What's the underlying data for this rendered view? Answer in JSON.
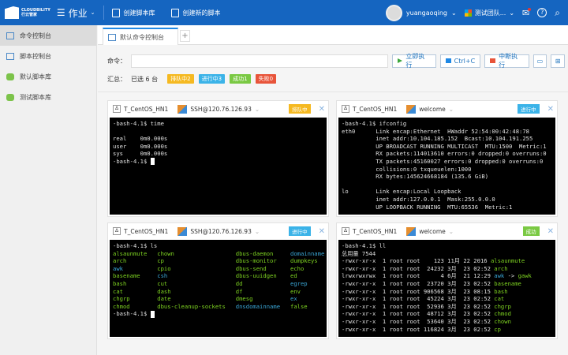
{
  "header": {
    "brand_line1": "CLOUDBILITY",
    "brand_line2": "行云管家",
    "menu": "作业",
    "create_repo": "创建脚本库",
    "create_script": "创建新的脚本",
    "user": "yuangaoqing",
    "team": "测试团队...",
    "help": "?",
    "search": "⌕"
  },
  "sidebar": {
    "items": [
      {
        "label": "命令控制台",
        "icon": "terminal-icon",
        "active": true
      },
      {
        "label": "脚本控制台",
        "icon": "script-console-icon"
      },
      {
        "label": "默认脚本库",
        "icon": "database-icon"
      },
      {
        "label": "测试脚本库",
        "icon": "database-icon"
      }
    ]
  },
  "tabs": [
    {
      "label": "默认命令控制台"
    }
  ],
  "tab_add": "+",
  "command": {
    "label": "命令：",
    "value": "",
    "run": "立即执行",
    "ctrlc": "Ctrl+C",
    "abort": "中断执行"
  },
  "summary": {
    "label": "汇总：",
    "selected": "已选 6 台",
    "badges": [
      {
        "label": "排队中2",
        "color": "#f5b921"
      },
      {
        "label": "进行中3",
        "color": "#3bb3e8"
      },
      {
        "label": "成功1",
        "color": "#7ac943"
      },
      {
        "label": "失败0",
        "color": "#e8543a"
      }
    ]
  },
  "panels": [
    {
      "host": "T_CentOS_HN1",
      "conn": "SSH@120.76.126.93",
      "status": "排队中",
      "status_color": "#f5b921",
      "lines": [
        [
          {
            "t": "-bash-4.1$ time"
          }
        ],
        [
          {
            "t": ""
          }
        ],
        [
          {
            "t": "real    0m0.000s"
          }
        ],
        [
          {
            "t": "user    0m0.000s"
          }
        ],
        [
          {
            "t": "sys     0m0.000s"
          }
        ],
        [
          {
            "t": "-bash-4.1$ "
          }
        ]
      ],
      "cursor": true
    },
    {
      "host": "T_CentOS_HN1",
      "conn": "welcome",
      "status": "进行中",
      "status_color": "#3bb3e8",
      "lines": [
        [
          {
            "t": "-bash-4.1$ ifconfig"
          }
        ],
        [
          {
            "t": "eth0      Link encap:Ethernet  HWaddr 52:54:00:42:48:78"
          }
        ],
        [
          {
            "t": "          inet addr:10.104.185.152  Bcast:10.104.191.255"
          }
        ],
        [
          {
            "t": "          UP BROADCAST RUNNING MULTICAST  MTU:1500  Metric:1"
          }
        ],
        [
          {
            "t": "          RX packets:114013610 errors:0 dropped:0 overruns:0"
          }
        ],
        [
          {
            "t": "          TX packets:45160027 errors:0 dropped:0 overruns:0"
          }
        ],
        [
          {
            "t": "          collisions:0 txqueuelen:1000"
          }
        ],
        [
          {
            "t": "          RX bytes:145624668184 (135.6 GiB)"
          }
        ],
        [
          {
            "t": ""
          }
        ],
        [
          {
            "t": "lo        Link encap:Local Loopback"
          }
        ],
        [
          {
            "t": "          inet addr:127.0.0.1  Mask:255.0.0.0"
          }
        ],
        [
          {
            "t": "          UP LOOPBACK RUNNING  MTU:65536  Metric:1"
          }
        ]
      ],
      "cursor": false
    },
    {
      "host": "T_CentOS_HN1",
      "conn": "SSH@120.76.126.93",
      "status": "进行中",
      "status_color": "#3bb3e8",
      "prompt_line": "-bash-4.1$ ls",
      "ls": [
        [
          [
            "alsaunmute",
            "#7ed321"
          ],
          [
            "chown",
            "#7ed321"
          ],
          [
            "dbus-daemon",
            "#7ed321"
          ],
          [
            "domainname",
            "#3aa6d6"
          ]
        ],
        [
          [
            "arch",
            "#7ed321"
          ],
          [
            "cp",
            "#7ed321"
          ],
          [
            "dbus-monitor",
            "#7ed321"
          ],
          [
            "dumpkeys",
            "#7ed321"
          ]
        ],
        [
          [
            "awk",
            "#3aa6d6"
          ],
          [
            "cpio",
            "#7ed321"
          ],
          [
            "dbus-send",
            "#7ed321"
          ],
          [
            "echo",
            "#7ed321"
          ]
        ],
        [
          [
            "basename",
            "#7ed321"
          ],
          [
            "csh",
            "#3aa6d6"
          ],
          [
            "dbus-uuidgen",
            "#7ed321"
          ],
          [
            "ed",
            "#7ed321"
          ]
        ],
        [
          [
            "bash",
            "#7ed321"
          ],
          [
            "cut",
            "#7ed321"
          ],
          [
            "dd",
            "#7ed321"
          ],
          [
            "egrep",
            "#3aa6d6"
          ]
        ],
        [
          [
            "cat",
            "#7ed321"
          ],
          [
            "dash",
            "#7ed321"
          ],
          [
            "df",
            "#7ed321"
          ],
          [
            "env",
            "#7ed321"
          ]
        ],
        [
          [
            "chgrp",
            "#7ed321"
          ],
          [
            "date",
            "#7ed321"
          ],
          [
            "dmesg",
            "#7ed321"
          ],
          [
            "ex",
            "#3aa6d6"
          ]
        ],
        [
          [
            "chmod",
            "#7ed321"
          ],
          [
            "dbus-cleanup-sockets",
            "#7ed321"
          ],
          [
            "dnsdomainname",
            "#3aa6d6"
          ],
          [
            "false",
            "#7ed321"
          ]
        ]
      ],
      "lines": [
        [
          {
            "t": "-bash-4.1$ "
          }
        ]
      ],
      "cursor": true
    },
    {
      "host": "T_CentOS_HN1",
      "conn": "welcome",
      "status": "成功",
      "status_color": "#7ac943",
      "lines": [
        [
          {
            "t": "-bash-4.1$ ll"
          }
        ],
        [
          {
            "t": "总用量 7544"
          }
        ],
        [
          {
            "t": "-rwxr-xr-x  1 root root    123 11月 22 2016 "
          },
          {
            "t": "alsaunmute",
            "c": "#7ed321"
          }
        ],
        [
          {
            "t": "-rwxr-xr-x  1 root root  24232 3月  23 02:52 "
          },
          {
            "t": "arch",
            "c": "#7ed321"
          }
        ],
        [
          {
            "t": "lrwxrwxrwx  1 root root      4 6月  21 12:29 "
          },
          {
            "t": "awk",
            "c": "#3aa6d6"
          },
          {
            "t": " -> "
          },
          {
            "t": "gawk",
            "c": "#7ed321"
          }
        ],
        [
          {
            "t": "-rwxr-xr-x  1 root root  23720 3月  23 02:52 "
          },
          {
            "t": "basename",
            "c": "#7ed321"
          }
        ],
        [
          {
            "t": "-rwxr-xr-x  1 root root 906568 3月  23 08:15 "
          },
          {
            "t": "bash",
            "c": "#7ed321"
          }
        ],
        [
          {
            "t": "-rwxr-xr-x  1 root root  45224 3月  23 02:52 "
          },
          {
            "t": "cat",
            "c": "#7ed321"
          }
        ],
        [
          {
            "t": "-rwxr-xr-x  1 root root  52936 3月  23 02:52 "
          },
          {
            "t": "chgrp",
            "c": "#7ed321"
          }
        ],
        [
          {
            "t": "-rwxr-xr-x  1 root root  48712 3月  23 02:52 "
          },
          {
            "t": "chmod",
            "c": "#7ed321"
          }
        ],
        [
          {
            "t": "-rwxr-xr-x  1 root root  53640 3月  23 02:52 "
          },
          {
            "t": "chown",
            "c": "#7ed321"
          }
        ],
        [
          {
            "t": "-rwxr-xr-x  1 root root 116824 3月  23 02:52 "
          },
          {
            "t": "cp",
            "c": "#7ed321"
          }
        ]
      ],
      "cursor": false
    }
  ]
}
